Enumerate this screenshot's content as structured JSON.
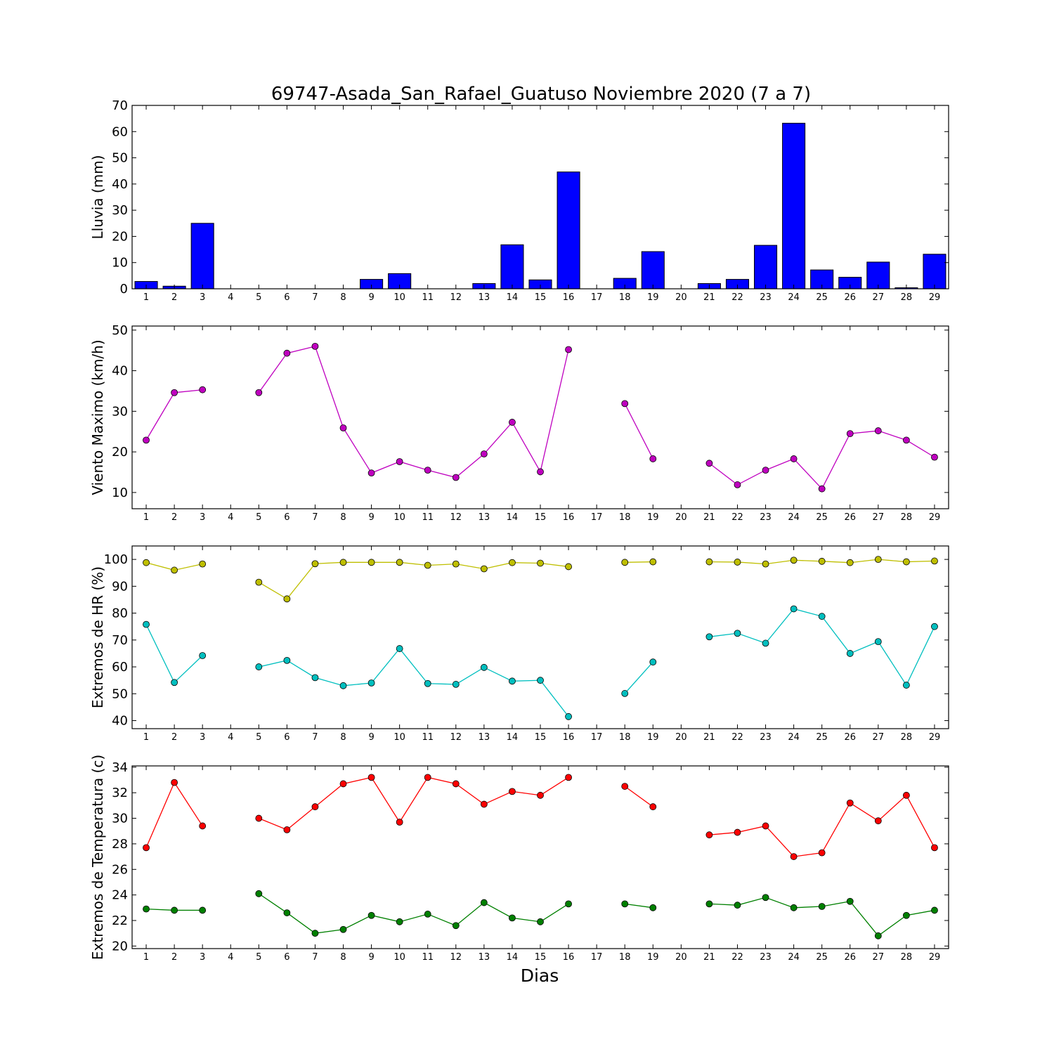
{
  "chart_data": {
    "type": "multi-panel",
    "title": "69747-Asada_San_Rafael_Guatuso Noviembre 2020  (7 a 7)",
    "xlabel": "Dias",
    "days": [
      1,
      2,
      3,
      4,
      5,
      6,
      7,
      8,
      9,
      10,
      11,
      12,
      13,
      14,
      15,
      16,
      17,
      18,
      19,
      20,
      21,
      22,
      23,
      24,
      25,
      26,
      27,
      28,
      29
    ],
    "panels": [
      {
        "type": "bar",
        "ylabel": "Lluvia (mm)",
        "ylim": [
          0,
          70
        ],
        "yticks": [
          0,
          10,
          20,
          30,
          40,
          50,
          60,
          70
        ],
        "series": [
          {
            "color": "#0000ff",
            "values": [
              2.8,
              1.0,
              25.0,
              0,
              0,
              0,
              0,
              0,
              3.6,
              5.8,
              0,
              0,
              2.0,
              16.8,
              3.4,
              44.6,
              0,
              4.0,
              14.2,
              0,
              2.0,
              3.6,
              16.6,
              63.2,
              7.2,
              4.4,
              10.2,
              0.4,
              13.2
            ]
          }
        ]
      },
      {
        "type": "line",
        "ylabel": "Viento Maximo (km/h)",
        "ylim": [
          6,
          51
        ],
        "yticks": [
          10,
          20,
          30,
          40,
          50
        ],
        "series": [
          {
            "color": "#bf00bf",
            "values": [
              22.9,
              34.6,
              35.3,
              null,
              34.6,
              44.3,
              46.0,
              25.9,
              14.8,
              17.6,
              15.5,
              13.7,
              19.5,
              27.3,
              15.1,
              45.2,
              null,
              31.9,
              18.3,
              null,
              17.2,
              11.9,
              15.5,
              18.3,
              10.9,
              24.5,
              25.2,
              22.9,
              18.7
            ]
          }
        ]
      },
      {
        "type": "line",
        "ylabel": "Extremos de HR (%)",
        "ylim": [
          37,
          105
        ],
        "yticks": [
          40,
          50,
          60,
          70,
          80,
          90,
          100
        ],
        "series": [
          {
            "color": "#bfbf00",
            "values": [
              98.8,
              96.0,
              98.3,
              null,
              91.5,
              85.3,
              98.4,
              98.9,
              98.9,
              98.9,
              97.8,
              98.3,
              96.5,
              98.8,
              98.6,
              97.3,
              null,
              98.9,
              99.1,
              null,
              99.1,
              99.0,
              98.3,
              99.7,
              99.3,
              98.8,
              100.0,
              99.1,
              99.4
            ]
          },
          {
            "color": "#00bfbf",
            "values": [
              75.8,
              54.2,
              64.2,
              null,
              60.0,
              62.4,
              56.0,
              53.0,
              54.0,
              66.8,
              53.8,
              53.5,
              59.8,
              54.7,
              55.0,
              41.5,
              null,
              50.1,
              61.8,
              null,
              71.2,
              72.5,
              68.8,
              81.6,
              78.8,
              65.0,
              69.4,
              53.2,
              75.0
            ]
          }
        ]
      },
      {
        "type": "line",
        "ylabel": "Extremos de Temperatura (c)",
        "ylim": [
          19.8,
          34.1
        ],
        "yticks": [
          20,
          22,
          24,
          26,
          28,
          30,
          32,
          34
        ],
        "series": [
          {
            "color": "#ff0000",
            "values": [
              27.7,
              32.8,
              29.4,
              null,
              30.0,
              29.1,
              30.9,
              32.7,
              33.2,
              29.7,
              33.2,
              32.7,
              31.1,
              32.1,
              31.8,
              33.2,
              null,
              32.5,
              30.9,
              null,
              28.7,
              28.9,
              29.4,
              27.0,
              27.3,
              31.2,
              29.8,
              31.8,
              27.7
            ]
          },
          {
            "color": "#008000",
            "values": [
              22.9,
              22.8,
              22.8,
              null,
              24.1,
              22.6,
              21.0,
              21.3,
              22.4,
              21.9,
              22.5,
              21.6,
              23.4,
              22.2,
              21.9,
              23.3,
              null,
              23.3,
              23.0,
              null,
              23.3,
              23.2,
              23.8,
              23.0,
              23.1,
              23.5,
              20.8,
              22.4,
              22.8
            ]
          }
        ]
      }
    ]
  }
}
